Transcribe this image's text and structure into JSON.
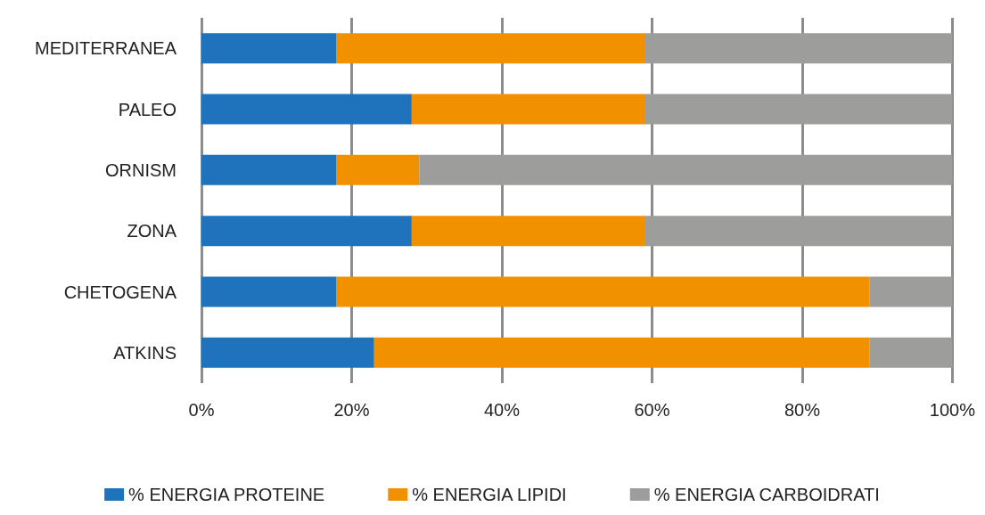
{
  "chart_data": {
    "type": "bar",
    "orientation": "horizontal",
    "stacked": true,
    "categories": [
      "MEDITERRANEA",
      "PALEO",
      "ORNISM",
      "ZONA",
      "CHETOGENA",
      "ATKINS"
    ],
    "series": [
      {
        "name": "% ENERGIA PROTEINE",
        "color": "#1f73bd",
        "values": [
          18,
          28,
          18,
          28,
          18,
          23
        ]
      },
      {
        "name": "% ENERGIA LIPIDI",
        "color": "#f29100",
        "values": [
          41,
          31,
          11,
          31,
          71,
          66
        ]
      },
      {
        "name": "% ENERGIA CARBOIDRATI",
        "color": "#9d9d9b",
        "values": [
          41,
          41,
          71,
          41,
          11,
          11
        ]
      }
    ],
    "xlim": [
      0,
      100
    ],
    "xticks": [
      {
        "value": 0,
        "label": "0%"
      },
      {
        "value": 20,
        "label": "20%"
      },
      {
        "value": 40,
        "label": "40%"
      },
      {
        "value": 60,
        "label": "60%"
      },
      {
        "value": 80,
        "label": "80%"
      },
      {
        "value": 100,
        "label": "100%"
      }
    ],
    "grid": "x",
    "legend": "bottom"
  }
}
